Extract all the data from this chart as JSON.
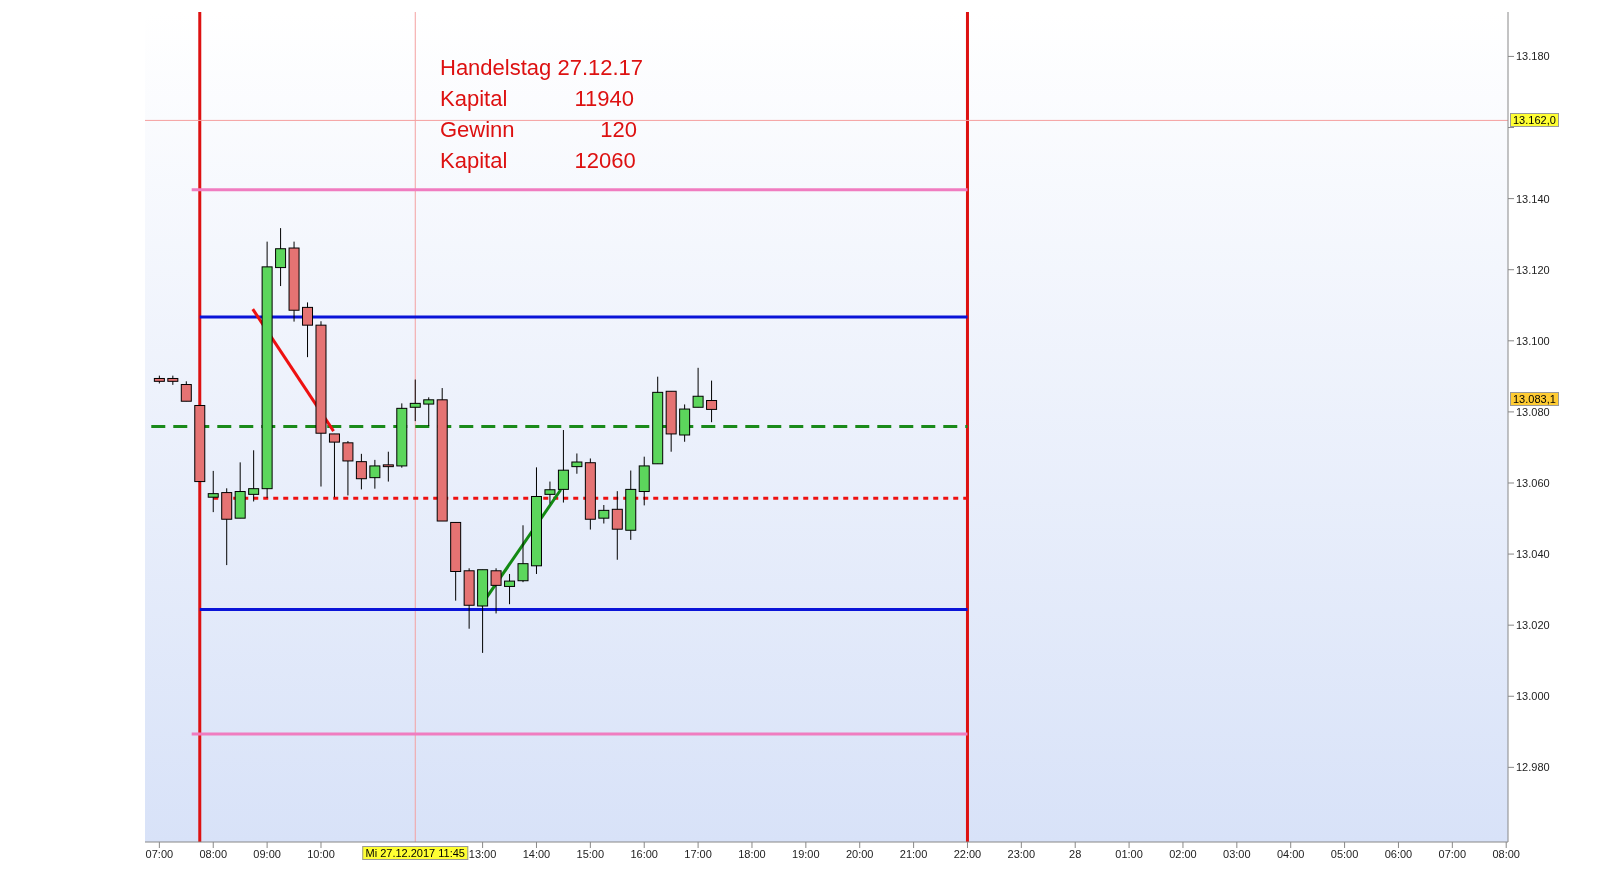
{
  "chart_data": {
    "type": "candlestick",
    "x": [
      "2017-12-27T07:00",
      "2017-12-27T07:15",
      "2017-12-27T07:30",
      "2017-12-27T07:45",
      "2017-12-27T08:00",
      "2017-12-27T08:15",
      "2017-12-27T08:30",
      "2017-12-27T08:45",
      "2017-12-27T09:00",
      "2017-12-27T09:15",
      "2017-12-27T09:30",
      "2017-12-27T09:45",
      "2017-12-27T10:00",
      "2017-12-27T10:15",
      "2017-12-27T10:30",
      "2017-12-27T10:45",
      "2017-12-27T11:00",
      "2017-12-27T11:15",
      "2017-12-27T11:30",
      "2017-12-27T11:45",
      "2017-12-27T12:00",
      "2017-12-27T12:15",
      "2017-12-27T12:30",
      "2017-12-27T12:45",
      "2017-12-27T13:00",
      "2017-12-27T13:15",
      "2017-12-27T13:30",
      "2017-12-27T13:45",
      "2017-12-27T14:00",
      "2017-12-27T14:15",
      "2017-12-27T14:30",
      "2017-12-27T14:45",
      "2017-12-27T15:00",
      "2017-12-27T15:15",
      "2017-12-27T15:30",
      "2017-12-27T15:45",
      "2017-12-27T16:00",
      "2017-12-27T16:15",
      "2017-12-27T16:30",
      "2017-12-27T16:45",
      "2017-12-27T17:00",
      "2017-12-27T17:15"
    ],
    "ohlc": [
      [
        13089.4,
        13090.2,
        13088,
        13088.6
      ],
      [
        13089.4,
        13090.2,
        13087.6,
        13088.6
      ],
      [
        13087.7,
        13088.6,
        13083,
        13083
      ],
      [
        13081.8,
        13081.8,
        13060.4,
        13060.4
      ],
      [
        13056,
        13063.4,
        13051.8,
        13057
      ],
      [
        13057.3,
        13058.5,
        13036.9,
        13049.8
      ],
      [
        13050.1,
        13065.8,
        13050.1,
        13057.6
      ],
      [
        13056.8,
        13069.2,
        13054.8,
        13058.4
      ],
      [
        13058.4,
        13127.9,
        13055.8,
        13120.8
      ],
      [
        13120.6,
        13131.7,
        13115.4,
        13125.9
      ],
      [
        13126.1,
        13127.9,
        13105.4,
        13108.6
      ],
      [
        13109.4,
        13110.8,
        13095.4,
        13104.4
      ],
      [
        13104.4,
        13105.5,
        13059,
        13074
      ],
      [
        13073.8,
        13073.8,
        13056,
        13071.5
      ],
      [
        13071.3,
        13071.8,
        13056.5,
        13066.2
      ],
      [
        13066,
        13068.2,
        13058.2,
        13061.2
      ],
      [
        13061.5,
        13066.5,
        13058.4,
        13064.8
      ],
      [
        13065.1,
        13068.8,
        13060.4,
        13064.6
      ],
      [
        13064.8,
        13082.4,
        13064.3,
        13081
      ],
      [
        13081.3,
        13089.1,
        13077.4,
        13082.4
      ],
      [
        13082.2,
        13084.1,
        13076,
        13083.4
      ],
      [
        13083.4,
        13086.7,
        13049.3,
        13049.3
      ],
      [
        13048.9,
        13048.9,
        13026.9,
        13035.1
      ],
      [
        13035.3,
        13036,
        13019,
        13025.6
      ],
      [
        13025.4,
        13035.6,
        13012.2,
        13035.6
      ],
      [
        13035.3,
        13036,
        13023.3,
        13031.2
      ],
      [
        13030.9,
        13034.4,
        13025.9,
        13032.4
      ],
      [
        13032.5,
        13048.1,
        13032.1,
        13037.3
      ],
      [
        13036.7,
        13064.4,
        13034.4,
        13056.2
      ],
      [
        13056.8,
        13060.4,
        13054.2,
        13058.1
      ],
      [
        13058.2,
        13074.9,
        13054.5,
        13063.6
      ],
      [
        13064.6,
        13068.3,
        13062.6,
        13065.9
      ],
      [
        13065.7,
        13066.9,
        13046.9,
        13049.8
      ],
      [
        13050.1,
        13053.8,
        13048.6,
        13052.3
      ],
      [
        13052.6,
        13057.7,
        13038.4,
        13047
      ],
      [
        13046.7,
        13063.5,
        13044,
        13058.2
      ],
      [
        13057.6,
        13067.4,
        13053.7,
        13064.8
      ],
      [
        13065.4,
        13089.9,
        13065.4,
        13085.5
      ],
      [
        13085.8,
        13085.8,
        13068.8,
        13073.8
      ],
      [
        13073.5,
        13082.1,
        13071.6,
        13080.8
      ],
      [
        13081.3,
        13092.4,
        13081.3,
        13084.4
      ],
      [
        13083.2,
        13088.8,
        13077.1,
        13080.7
      ]
    ],
    "colors": [
      "#e57373",
      "#e57373",
      "#e57373",
      "#e57373",
      "#5cd65c",
      "#e57373",
      "#5cd65c",
      "#5cd65c",
      "#5cd65c",
      "#5cd65c",
      "#e57373",
      "#e57373",
      "#e57373",
      "#e57373",
      "#e57373",
      "#e57373",
      "#5cd65c",
      "#e57373",
      "#5cd65c",
      "#5cd65c",
      "#5cd65c",
      "#e57373",
      "#e57373",
      "#e57373",
      "#5cd65c",
      "#e57373",
      "#5cd65c",
      "#5cd65c",
      "#5cd65c",
      "#5cd65c",
      "#5cd65c",
      "#5cd65c",
      "#e57373",
      "#5cd65c",
      "#e57373",
      "#5cd65c",
      "#5cd65c",
      "#5cd65c",
      "#e57373",
      "#5cd65c",
      "#5cd65c",
      "#e57373"
    ],
    "series": [
      {
        "type": "line",
        "color": "#f07cc0",
        "line_style": "solid",
        "x": [
          "2017-12-27T07:36",
          "2017-12-27T22:00"
        ],
        "values": [
          13142.5,
          13142.5
        ]
      },
      {
        "type": "line",
        "color": "#0a14d8",
        "line_style": "solid",
        "x": [
          "2017-12-27T07:45",
          "2017-12-27T22:00"
        ],
        "values": [
          13106.7,
          13106.7
        ]
      },
      {
        "type": "line",
        "color": "#1a8a1a",
        "line_style": "dashed",
        "x": [
          "2017-12-27T06:51",
          "2017-12-27T22:00"
        ],
        "values": [
          13075.9,
          13075.9
        ]
      },
      {
        "type": "line",
        "color": "#ee1111",
        "line_style": "dotted",
        "x": [
          "2017-12-27T08:00",
          "2017-12-27T22:00"
        ],
        "values": [
          13055.7,
          13055.7
        ]
      },
      {
        "type": "line",
        "color": "#0a14d8",
        "line_style": "solid",
        "x": [
          "2017-12-27T07:45",
          "2017-12-27T22:00"
        ],
        "values": [
          13024.4,
          13024.4
        ]
      },
      {
        "type": "line",
        "color": "#f07cc0",
        "line_style": "solid",
        "x": [
          "2017-12-27T07:36",
          "2017-12-27T22:00"
        ],
        "values": [
          12989.4,
          12989.4
        ]
      },
      {
        "type": "line",
        "color": "#ee1111",
        "line_style": "solid",
        "x": [
          "2017-12-27T08:44",
          "2017-12-27T10:14"
        ],
        "values": [
          13108.9,
          13074.6
        ]
      },
      {
        "type": "line",
        "color": "#138a13",
        "line_style": "solid",
        "x": [
          "2017-12-27T12:58",
          "2017-12-27T14:27"
        ],
        "values": [
          13025.4,
          13058.1
        ]
      }
    ],
    "xlim": [
      "2017-12-27T06:44",
      "2017-12-28T08:02"
    ],
    "xticks": [
      {
        "value": "2017-12-27T07:00",
        "label": "07:00"
      },
      {
        "value": "2017-12-27T08:00",
        "label": "08:00"
      },
      {
        "value": "2017-12-27T09:00",
        "label": "09:00"
      },
      {
        "value": "2017-12-27T10:00",
        "label": "10:00"
      },
      {
        "value": "2017-12-27T13:00",
        "label": "13:00"
      },
      {
        "value": "2017-12-27T14:00",
        "label": "14:00"
      },
      {
        "value": "2017-12-27T15:00",
        "label": "15:00"
      },
      {
        "value": "2017-12-27T16:00",
        "label": "16:00"
      },
      {
        "value": "2017-12-27T17:00",
        "label": "17:00"
      },
      {
        "value": "2017-12-27T18:00",
        "label": "18:00"
      },
      {
        "value": "2017-12-27T19:00",
        "label": "19:00"
      },
      {
        "value": "2017-12-27T20:00",
        "label": "20:00"
      },
      {
        "value": "2017-12-27T21:00",
        "label": "21:00"
      },
      {
        "value": "2017-12-27T22:00",
        "label": "22:00"
      },
      {
        "value": "2017-12-27T23:00",
        "label": "23:00"
      },
      {
        "value": "2017-12-28T00:00",
        "label": "28"
      },
      {
        "value": "2017-12-28T01:00",
        "label": "01:00"
      },
      {
        "value": "2017-12-28T02:00",
        "label": "02:00"
      },
      {
        "value": "2017-12-28T03:00",
        "label": "03:00"
      },
      {
        "value": "2017-12-28T04:00",
        "label": "04:00"
      },
      {
        "value": "2017-12-28T05:00",
        "label": "05:00"
      },
      {
        "value": "2017-12-28T06:00",
        "label": "06:00"
      },
      {
        "value": "2017-12-28T07:00",
        "label": "07:00"
      },
      {
        "value": "2017-12-28T08:00",
        "label": "08:00"
      }
    ],
    "ylim": [
      12959,
      13192.5
    ],
    "yticks": [
      {
        "value": 12980,
        "label": "12.980"
      },
      {
        "value": 13000,
        "label": "13.000"
      },
      {
        "value": 13020,
        "label": "13.020"
      },
      {
        "value": 13040,
        "label": "13.040"
      },
      {
        "value": 13060,
        "label": "13.060"
      },
      {
        "value": 13080,
        "label": "13.080"
      },
      {
        "value": 13100,
        "label": "13.100"
      },
      {
        "value": 13120,
        "label": "13.120"
      },
      {
        "value": 13140,
        "label": "13.140"
      },
      {
        "value": 13160,
        "label": null
      },
      {
        "value": 13180,
        "label": "13.180"
      }
    ],
    "ref_lines": [
      {
        "axis": "x",
        "value": "2017-12-27T07:45",
        "color": "#dd1111"
      },
      {
        "axis": "x",
        "value": "2017-12-27T22:00",
        "color": "#dd1111"
      },
      {
        "axis": "x",
        "value": "2017-12-27T11:45",
        "label": "Mi 27.12.2017 11:45",
        "color": "#f4a0a0"
      },
      {
        "axis": "y",
        "value": 13162,
        "label": "13.162,0",
        "color": "#f4a0a0"
      }
    ],
    "annotations": [
      "Handelstag 27.12.17",
      "Kapital           11940",
      "Gewinn              120",
      "Kapital           12060",
      "13.083,1"
    ]
  }
}
